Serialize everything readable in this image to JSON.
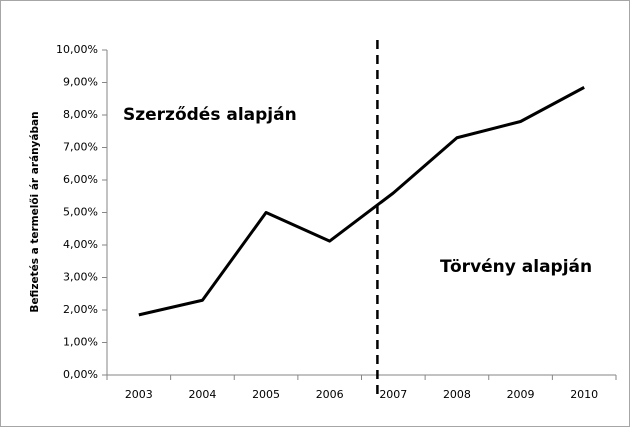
{
  "chart_data": {
    "type": "line",
    "y_label": "Befizetés a termelői ár arányában",
    "annotations": [
      "Szerződés alapján",
      "Törvény alapján"
    ],
    "categories": [
      "2003",
      "2004",
      "2005",
      "2006",
      "2007",
      "2008",
      "2009",
      "2010"
    ],
    "series": [
      {
        "color": "#000000",
        "values": [
          1.85,
          2.3,
          5.0,
          4.12,
          5.6,
          7.3,
          7.8,
          8.85
        ]
      }
    ],
    "ylim": [
      0,
      10
    ],
    "yticks": [
      {
        "value": 0,
        "label": "0,00%"
      },
      {
        "value": 1,
        "label": "1,00%"
      },
      {
        "value": 2,
        "label": "2,00%"
      },
      {
        "value": 3,
        "label": "3,00%"
      },
      {
        "value": 4,
        "label": "4,00%"
      },
      {
        "value": 5,
        "label": "5,00%"
      },
      {
        "value": 6,
        "label": "6,00%"
      },
      {
        "value": 7,
        "label": "7,00%"
      },
      {
        "value": 8,
        "label": "8,00%"
      },
      {
        "value": 9,
        "label": "9,00%"
      },
      {
        "value": 10,
        "label": "10,00%"
      }
    ],
    "grid": false
  }
}
